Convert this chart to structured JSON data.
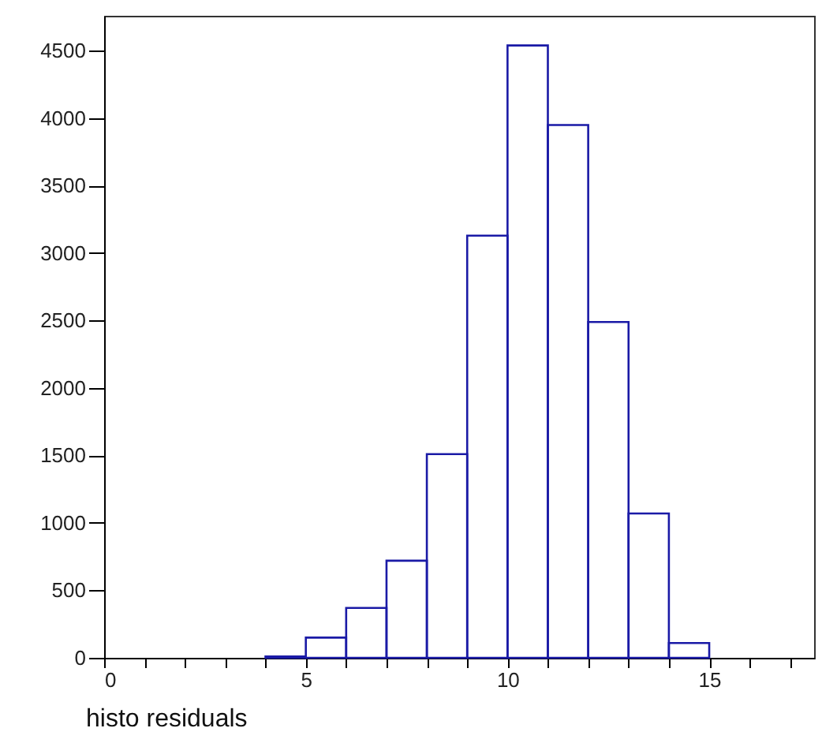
{
  "chart_data": {
    "type": "histogram",
    "xlabel": "histo residuals",
    "bins": [
      4,
      5,
      6,
      7,
      8,
      9,
      10,
      11,
      12,
      13,
      14,
      15
    ],
    "values": [
      10,
      150,
      370,
      720,
      1510,
      3130,
      4540,
      3950,
      2490,
      1070,
      110
    ],
    "color": "#1a1aa6",
    "xlim": [
      0,
      17.6
    ],
    "ylim": [
      0,
      4760
    ],
    "xticks": [
      0,
      {
        "value": 1,
        "label": null
      },
      {
        "value": 2,
        "label": null
      },
      {
        "value": 3,
        "label": null
      },
      {
        "value": 4,
        "label": null
      },
      5,
      {
        "value": 6,
        "label": null
      },
      {
        "value": 7,
        "label": null
      },
      {
        "value": 8,
        "label": null
      },
      {
        "value": 9,
        "label": null
      },
      10,
      {
        "value": 11,
        "label": null
      },
      {
        "value": 12,
        "label": null
      },
      {
        "value": 13,
        "label": null
      },
      {
        "value": 14,
        "label": null
      },
      15,
      {
        "value": 16,
        "label": null
      },
      {
        "value": 17,
        "label": null
      }
    ],
    "yticks": [
      0,
      500,
      1000,
      1500,
      2000,
      2500,
      3000,
      3500,
      4000,
      4500
    ]
  }
}
